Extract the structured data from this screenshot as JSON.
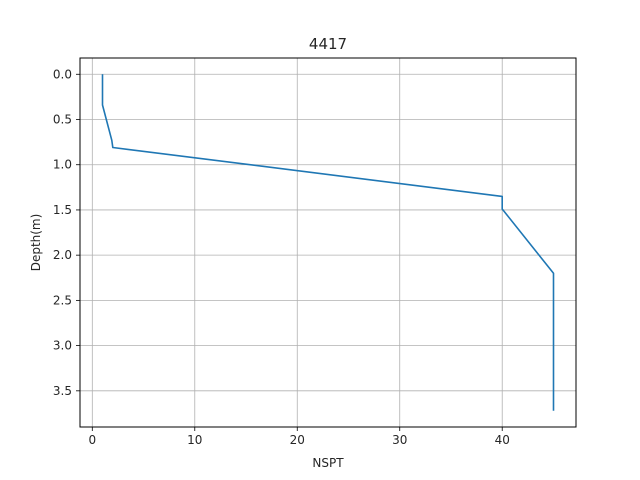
{
  "chart_data": {
    "type": "line",
    "title": "4417",
    "xlabel": "NSPT",
    "ylabel": "Depth(m)",
    "xlim": [
      -1.2,
      47.2
    ],
    "ylim": [
      3.9,
      -0.18
    ],
    "y_inverted": true,
    "grid": true,
    "xticks": [
      0,
      10,
      20,
      30,
      40
    ],
    "xtick_labels": [
      "0",
      "10",
      "20",
      "30",
      "40"
    ],
    "yticks": [
      0.0,
      0.5,
      1.0,
      1.5,
      2.0,
      2.5,
      3.0,
      3.5
    ],
    "ytick_labels": [
      "0.0",
      "0.5",
      "1.0",
      "1.5",
      "2.0",
      "2.5",
      "3.0",
      "3.5"
    ],
    "series": [
      {
        "color": "#1f77b4",
        "x": [
          1,
          1,
          1.9,
          2,
          40,
          40,
          45,
          45
        ],
        "y": [
          0.0,
          0.34,
          0.73,
          0.81,
          1.35,
          1.49,
          2.2,
          3.72
        ]
      }
    ]
  }
}
